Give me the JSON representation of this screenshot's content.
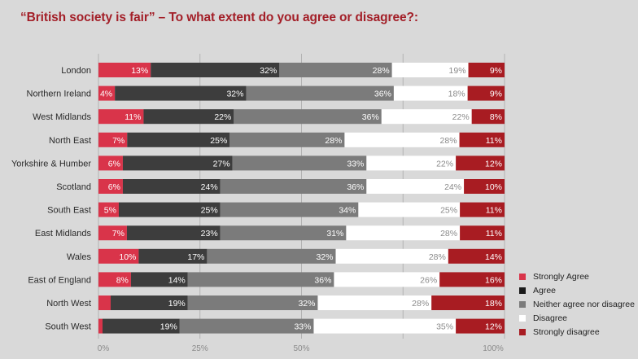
{
  "chart_data": {
    "type": "bar",
    "orientation": "horizontal",
    "stacked": true,
    "title": "“British society is fair” – To what extent do you agree or disagree?:",
    "xlabel": "",
    "ylabel": "",
    "xlim": [
      0,
      100
    ],
    "x_ticks": [
      {
        "value": 0,
        "label": "0%"
      },
      {
        "value": 25,
        "label": "25%"
      },
      {
        "value": 50,
        "label": "50%"
      },
      {
        "value": 75,
        "label": ""
      },
      {
        "value": 100,
        "label": "100%"
      }
    ],
    "grid": true,
    "legend_position": "bottom-right",
    "categories": [
      "London",
      "Northern Ireland",
      "West Midlands",
      "North East",
      "Yorkshire & Humber",
      "Scotland",
      "South East",
      "East Midlands",
      "Wales",
      "East of England",
      "North West",
      "South West"
    ],
    "series": [
      {
        "name": "Strongly Agree",
        "color": "#d9344a",
        "label_color": "#ffffff",
        "values": [
          13,
          4,
          11,
          7,
          6,
          6,
          5,
          7,
          10,
          8,
          3,
          1
        ]
      },
      {
        "name": "Agree",
        "color": "#3d3d3d",
        "label_color": "#ffffff",
        "values": [
          32,
          32,
          22,
          25,
          27,
          24,
          25,
          23,
          17,
          14,
          19,
          19
        ]
      },
      {
        "name": "Neither agree nor disagree",
        "color": "#7b7b7b",
        "label_color": "#ffffff",
        "values": [
          28,
          36,
          36,
          28,
          33,
          36,
          34,
          31,
          32,
          36,
          32,
          33
        ]
      },
      {
        "name": "Disagree",
        "color": "#ffffff",
        "label_color": "#8a8a8a",
        "values": [
          19,
          18,
          22,
          28,
          22,
          24,
          25,
          28,
          28,
          26,
          28,
          35
        ]
      },
      {
        "name": "Strongly disagree",
        "color": "#a81c22",
        "label_color": "#ffffff",
        "values": [
          9,
          9,
          8,
          11,
          12,
          10,
          11,
          11,
          14,
          16,
          18,
          12
        ]
      }
    ],
    "value_suffix": "%"
  },
  "legend": {
    "items": [
      {
        "label": "Strongly Agree",
        "color": "#d9344a"
      },
      {
        "label": "Agree",
        "color": "#1a1a1a"
      },
      {
        "label": "Neither agree nor disagree",
        "color": "#7b7b7b"
      },
      {
        "label": "Disagree",
        "color": "#ffffff"
      },
      {
        "label": "Strongly disagree",
        "color": "#a81c22"
      }
    ]
  }
}
